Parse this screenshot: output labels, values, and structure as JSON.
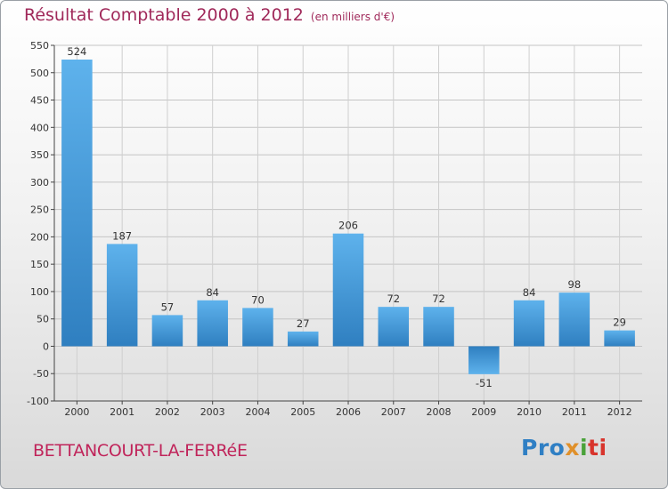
{
  "title": "Résultat Comptable 2000 à 2012",
  "subtitle": "(en milliers d'€)",
  "commune": "BETTANCOURT-LA-FERRéE",
  "logo": {
    "p1": "Pro",
    "p2": "x",
    "p3": "i",
    "p4": "ti"
  },
  "chart_data": {
    "type": "bar",
    "title": "Résultat Comptable 2000 à 2012",
    "subtitle": "(en milliers d'€)",
    "categories": [
      "2000",
      "2001",
      "2002",
      "2003",
      "2004",
      "2005",
      "2006",
      "2007",
      "2008",
      "2009",
      "2010",
      "2011",
      "2012"
    ],
    "values": [
      524,
      187,
      57,
      84,
      70,
      27,
      206,
      72,
      72,
      -51,
      84,
      98,
      29
    ],
    "ylim": [
      -100,
      550
    ],
    "yticks": [
      -100,
      -50,
      0,
      50,
      100,
      150,
      200,
      250,
      300,
      350,
      400,
      450,
      500,
      550
    ],
    "xlabel": "",
    "ylabel": "",
    "grid": true,
    "bar_color": "#3f97d8"
  }
}
